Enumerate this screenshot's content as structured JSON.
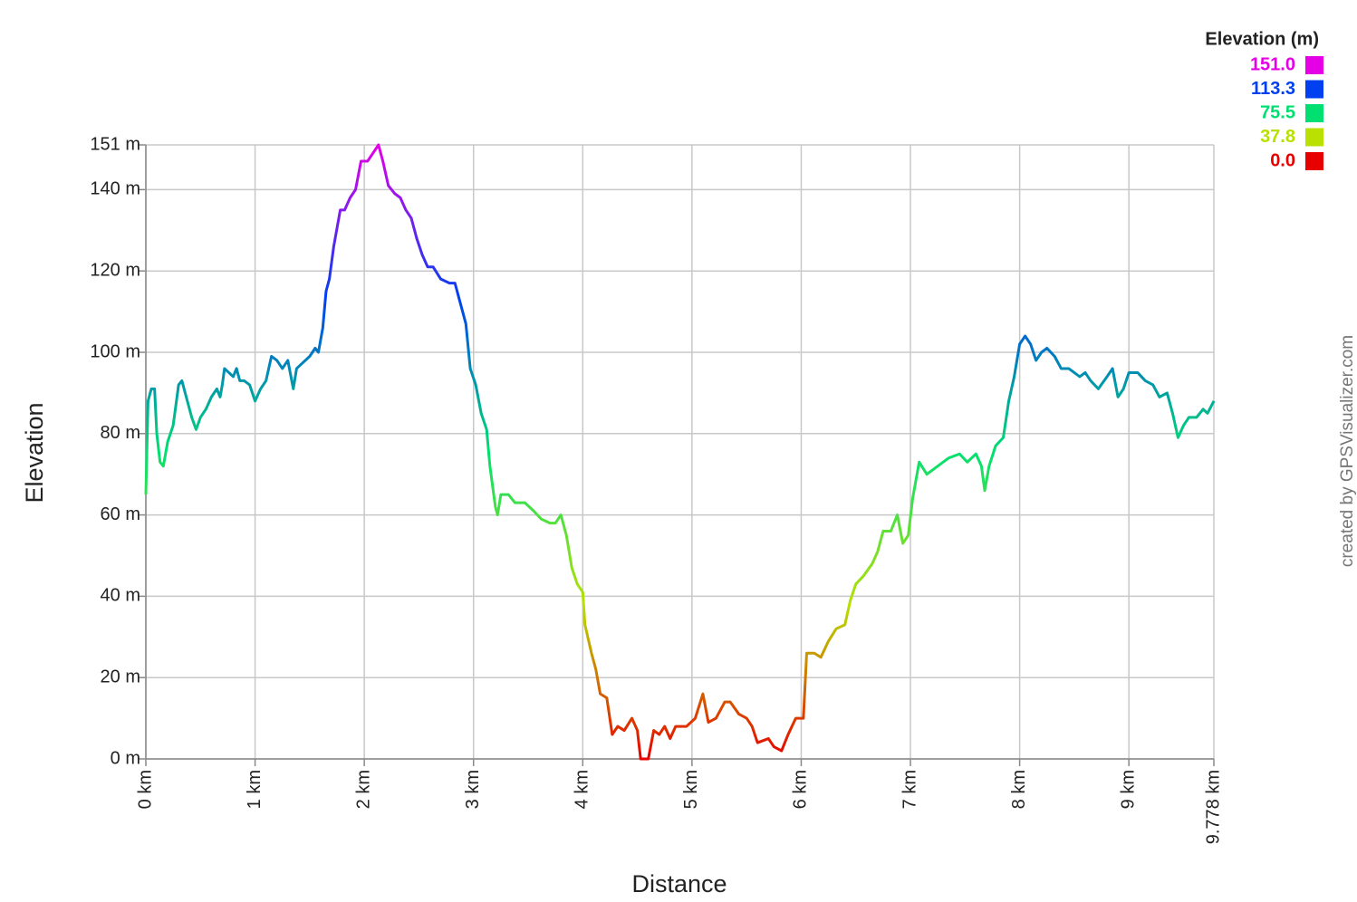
{
  "chart_data": {
    "type": "line",
    "y_label": "Elevation",
    "x_label": "Distance",
    "credit": "created by GPSVisualizer.com",
    "grid": true,
    "xlim": [
      0,
      9.778
    ],
    "ylim": [
      0,
      151
    ],
    "xticks": [
      {
        "value": 0,
        "label": "0 km"
      },
      {
        "value": 1,
        "label": "1 km"
      },
      {
        "value": 2,
        "label": "2 km"
      },
      {
        "value": 3,
        "label": "3 km"
      },
      {
        "value": 4,
        "label": "4 km"
      },
      {
        "value": 5,
        "label": "5 km"
      },
      {
        "value": 6,
        "label": "6 km"
      },
      {
        "value": 7,
        "label": "7 km"
      },
      {
        "value": 8,
        "label": "8 km"
      },
      {
        "value": 9,
        "label": "9 km"
      },
      {
        "value": 9.778,
        "label": "9.778 km"
      }
    ],
    "yticks": [
      {
        "value": 0,
        "label": "0 m"
      },
      {
        "value": 20,
        "label": "20 m"
      },
      {
        "value": 40,
        "label": "40 m"
      },
      {
        "value": 60,
        "label": "60 m"
      },
      {
        "value": 80,
        "label": "80 m"
      },
      {
        "value": 100,
        "label": "100 m"
      },
      {
        "value": 120,
        "label": "120 m"
      },
      {
        "value": 140,
        "label": "140 m"
      },
      {
        "value": 151,
        "label": "151 m"
      }
    ],
    "color_scale": {
      "title": "Elevation (m)",
      "legend": "top-right",
      "stops": [
        {
          "value": 151,
          "label": "151.0",
          "color": "#e600e6"
        },
        {
          "value": 113.3,
          "label": "113.3",
          "color": "#0040f0"
        },
        {
          "value": 75.5,
          "label": "75.5",
          "color": "#00e070"
        },
        {
          "value": 37.8,
          "label": "37.8",
          "color": "#b8e000"
        },
        {
          "value": 0,
          "label": "0.0",
          "color": "#e80000"
        }
      ]
    },
    "x": [
      0,
      0.02,
      0.05,
      0.08,
      0.1,
      0.13,
      0.16,
      0.2,
      0.25,
      0.3,
      0.33,
      0.38,
      0.42,
      0.46,
      0.5,
      0.55,
      0.6,
      0.65,
      0.68,
      0.7,
      0.72,
      0.76,
      0.8,
      0.83,
      0.86,
      0.9,
      0.95,
      1.0,
      1.05,
      1.1,
      1.15,
      1.2,
      1.25,
      1.3,
      1.35,
      1.38,
      1.42,
      1.5,
      1.55,
      1.58,
      1.62,
      1.65,
      1.68,
      1.72,
      1.78,
      1.82,
      1.87,
      1.92,
      1.97,
      2.03,
      2.08,
      2.13,
      2.17,
      2.22,
      2.28,
      2.33,
      2.38,
      2.43,
      2.48,
      2.53,
      2.58,
      2.63,
      2.7,
      2.78,
      2.83,
      2.88,
      2.93,
      2.97,
      3.02,
      3.07,
      3.12,
      3.15,
      3.2,
      3.22,
      3.25,
      3.32,
      3.38,
      3.47,
      3.55,
      3.62,
      3.7,
      3.75,
      3.8,
      3.85,
      3.9,
      3.95,
      4.0,
      4.02,
      4.08,
      4.12,
      4.16,
      4.22,
      4.27,
      4.32,
      4.38,
      4.45,
      4.5,
      4.53,
      4.6,
      4.65,
      4.7,
      4.75,
      4.8,
      4.85,
      4.95,
      5.03,
      5.1,
      5.15,
      5.22,
      5.3,
      5.35,
      5.43,
      5.5,
      5.55,
      5.6,
      5.7,
      5.75,
      5.82,
      5.88,
      5.95,
      6.02,
      6.05,
      6.12,
      6.18,
      6.25,
      6.32,
      6.4,
      6.45,
      6.5,
      6.57,
      6.65,
      6.7,
      6.75,
      6.82,
      6.88,
      6.93,
      6.98,
      7.02,
      7.08,
      7.15,
      7.25,
      7.35,
      7.45,
      7.52,
      7.6,
      7.65,
      7.68,
      7.72,
      7.78,
      7.85,
      7.9,
      7.95,
      8.0,
      8.05,
      8.1,
      8.15,
      8.2,
      8.25,
      8.32,
      8.38,
      8.45,
      8.55,
      8.6,
      8.65,
      8.72,
      8.8,
      8.85,
      8.9,
      8.95,
      9.0,
      9.08,
      9.15,
      9.22,
      9.28,
      9.35,
      9.4,
      9.45,
      9.5,
      9.55,
      9.62,
      9.68,
      9.72,
      9.778
    ],
    "values": [
      65,
      88,
      91,
      91,
      80,
      73,
      72,
      78,
      82,
      92,
      93,
      88,
      84,
      81,
      84,
      86,
      89,
      91,
      89,
      92,
      96,
      95,
      94,
      96,
      93,
      93,
      92,
      88,
      91,
      93,
      99,
      98,
      96,
      98,
      91,
      96,
      97,
      99,
      101,
      100,
      106,
      115,
      118,
      126,
      135,
      135,
      138,
      140,
      147,
      147,
      149,
      151,
      147,
      141,
      139,
      138,
      135,
      133,
      128,
      124,
      121,
      121,
      118,
      117,
      117,
      112,
      107,
      96,
      92,
      85,
      81,
      72,
      62,
      60,
      65,
      65,
      63,
      63,
      61,
      59,
      58,
      58,
      60,
      55,
      47,
      43,
      41,
      33,
      26,
      22,
      16,
      15,
      6,
      8,
      7,
      10,
      7,
      0,
      0,
      7,
      6,
      8,
      5,
      8,
      8,
      10,
      16,
      9,
      10,
      14,
      14,
      11,
      10,
      8,
      4,
      5,
      3,
      2,
      6,
      10,
      10,
      26,
      26,
      25,
      29,
      32,
      33,
      39,
      43,
      45,
      48,
      51,
      56,
      56,
      60,
      53,
      55,
      64,
      73,
      70,
      72,
      74,
      75,
      73,
      75,
      72,
      66,
      72,
      77,
      79,
      88,
      94,
      102,
      104,
      102,
      98,
      100,
      101,
      99,
      96,
      96,
      94,
      95,
      93,
      91,
      94,
      96,
      89,
      91,
      95,
      95,
      93,
      92,
      89,
      90,
      85,
      79,
      82,
      84,
      84,
      86,
      85,
      88
    ]
  }
}
